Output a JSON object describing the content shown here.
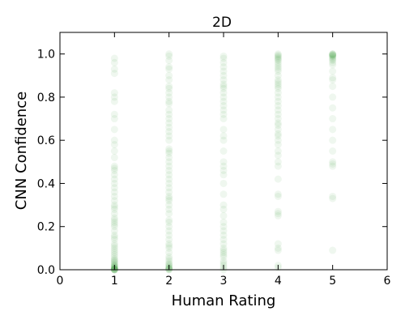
{
  "chart_data": {
    "type": "scatter",
    "title": "2D",
    "xlabel": "Human Rating",
    "ylabel": "CNN Confidence",
    "xlim": [
      0,
      6
    ],
    "ylim": [
      0,
      1.1
    ],
    "xticks": [
      0,
      1,
      2,
      3,
      4,
      5,
      6
    ],
    "yticks": [
      0.0,
      0.2,
      0.4,
      0.6,
      0.8,
      1.0
    ],
    "xtick_labels": [
      "0",
      "1",
      "2",
      "3",
      "4",
      "5",
      "6"
    ],
    "ytick_labels": [
      "0.0",
      "0.2",
      "0.4",
      "0.6",
      "0.8",
      "1.0"
    ],
    "marker_color": "#1f8a1f",
    "marker_alpha": 0.07,
    "grid": false,
    "series": [
      {
        "x": 1,
        "values": [
          0.98,
          0.96,
          0.93,
          0.91,
          0.82,
          0.8,
          0.78,
          0.72,
          0.7,
          0.65,
          0.6,
          0.58,
          0.55,
          0.52,
          0.48,
          0.47,
          0.46,
          0.44,
          0.42,
          0.4,
          0.38,
          0.36,
          0.34,
          0.32,
          0.3,
          0.29,
          0.28,
          0.26,
          0.24,
          0.23,
          0.22,
          0.21,
          0.2,
          0.18,
          0.16,
          0.15,
          0.14,
          0.12,
          0.11,
          0.1,
          0.09,
          0.08,
          0.07,
          0.06,
          0.05,
          0.045,
          0.04,
          0.035,
          0.03,
          0.025,
          0.02,
          0.018,
          0.015,
          0.012,
          0.01,
          0.008,
          0.005,
          0.003,
          0.002,
          0.001,
          0.0,
          0.0,
          0.0,
          0.0
        ]
      },
      {
        "x": 2,
        "values": [
          1.0,
          0.99,
          0.97,
          0.94,
          0.93,
          0.9,
          0.88,
          0.85,
          0.84,
          0.82,
          0.8,
          0.78,
          0.77,
          0.74,
          0.72,
          0.7,
          0.68,
          0.66,
          0.64,
          0.62,
          0.6,
          0.56,
          0.55,
          0.54,
          0.52,
          0.5,
          0.48,
          0.46,
          0.44,
          0.42,
          0.4,
          0.38,
          0.36,
          0.34,
          0.33,
          0.32,
          0.3,
          0.28,
          0.26,
          0.23,
          0.22,
          0.2,
          0.18,
          0.16,
          0.14,
          0.12,
          0.11,
          0.1,
          0.08,
          0.06,
          0.05,
          0.04,
          0.03,
          0.025,
          0.02,
          0.015,
          0.01,
          0.008,
          0.005,
          0.003,
          0.001,
          0.0
        ]
      },
      {
        "x": 3,
        "values": [
          0.99,
          0.98,
          0.96,
          0.94,
          0.92,
          0.9,
          0.88,
          0.86,
          0.85,
          0.84,
          0.82,
          0.8,
          0.78,
          0.76,
          0.74,
          0.72,
          0.7,
          0.65,
          0.62,
          0.6,
          0.55,
          0.5,
          0.48,
          0.46,
          0.44,
          0.4,
          0.35,
          0.3,
          0.28,
          0.25,
          0.22,
          0.2,
          0.18,
          0.16,
          0.14,
          0.12,
          0.1,
          0.09,
          0.08,
          0.07,
          0.06,
          0.04,
          0.03,
          0.02,
          0.01,
          0.0
        ]
      },
      {
        "x": 4,
        "values": [
          1.0,
          0.995,
          0.99,
          0.985,
          0.98,
          0.975,
          0.97,
          0.96,
          0.95,
          0.94,
          0.93,
          0.92,
          0.9,
          0.88,
          0.87,
          0.86,
          0.85,
          0.84,
          0.82,
          0.8,
          0.78,
          0.76,
          0.74,
          0.72,
          0.7,
          0.68,
          0.67,
          0.65,
          0.63,
          0.62,
          0.6,
          0.58,
          0.55,
          0.53,
          0.5,
          0.48,
          0.42,
          0.35,
          0.34,
          0.27,
          0.26,
          0.25,
          0.12,
          0.1,
          0.09,
          0.02,
          0.01
        ]
      },
      {
        "x": 5,
        "values": [
          1.0,
          1.0,
          0.998,
          0.996,
          0.994,
          0.992,
          0.99,
          0.985,
          0.98,
          0.975,
          0.97,
          0.96,
          0.95,
          0.92,
          0.89,
          0.88,
          0.85,
          0.8,
          0.75,
          0.7,
          0.65,
          0.6,
          0.55,
          0.5,
          0.49,
          0.48,
          0.34,
          0.33,
          0.09
        ]
      }
    ]
  }
}
